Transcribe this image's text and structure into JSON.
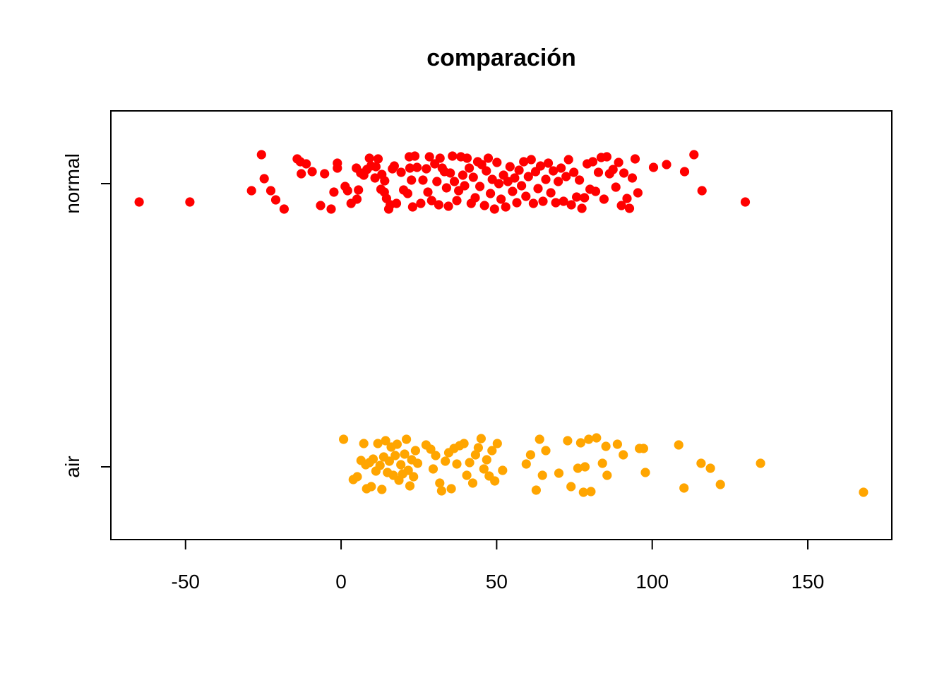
{
  "chart_data": {
    "type": "scatter",
    "title": "comparación",
    "xlabel": "",
    "ylabel": "",
    "xlim": [
      -74,
      177
    ],
    "x_ticks": [
      -50,
      0,
      50,
      100,
      150
    ],
    "x_tick_labels": [
      "-50",
      "0",
      "50",
      "100",
      "150"
    ],
    "categories": [
      "air",
      "normal"
    ],
    "grid": false,
    "legend": "none",
    "jitter": true,
    "series": [
      {
        "category": "normal",
        "color": "#ff0000",
        "points": [
          [
            -64.9,
            -0.26
          ],
          [
            -48.6,
            -0.26
          ],
          [
            -25.6,
            0.41
          ],
          [
            -24.7,
            0.07
          ],
          [
            -28.8,
            -0.1
          ],
          [
            -22.6,
            -0.1
          ],
          [
            -21.0,
            -0.23
          ],
          [
            -18.3,
            -0.36
          ],
          [
            -14.1,
            0.35
          ],
          [
            -13.1,
            0.31
          ],
          [
            -12.8,
            0.14
          ],
          [
            -11.2,
            0.28
          ],
          [
            -9.3,
            0.17
          ],
          [
            -6.6,
            -0.31
          ],
          [
            -5.3,
            0.14
          ],
          [
            -3.2,
            -0.36
          ],
          [
            -2.3,
            -0.12
          ],
          [
            -1.2,
            0.29
          ],
          [
            -1.2,
            0.22
          ],
          [
            1.3,
            -0.04
          ],
          [
            2.1,
            -0.1
          ],
          [
            3.2,
            -0.28
          ],
          [
            4.9,
            0.22
          ],
          [
            5.1,
            -0.22
          ],
          [
            5.6,
            -0.09
          ],
          [
            6.3,
            0.15
          ],
          [
            7.3,
            0.12
          ],
          [
            8.3,
            0.2
          ],
          [
            9.1,
            0.36
          ],
          [
            9.6,
            0.25
          ],
          [
            10.9,
            0.08
          ],
          [
            11.2,
            0.24
          ],
          [
            11.9,
            0.35
          ],
          [
            12.8,
            -0.08
          ],
          [
            13.1,
            0.13
          ],
          [
            13.9,
            -0.12
          ],
          [
            14.0,
            0.04
          ],
          [
            14.6,
            -0.21
          ],
          [
            15.3,
            -0.36
          ],
          [
            15.8,
            -0.3
          ],
          [
            16.5,
            0.21
          ],
          [
            17.1,
            0.25
          ],
          [
            17.8,
            -0.28
          ],
          [
            19.3,
            0.16
          ],
          [
            20.1,
            -0.09
          ],
          [
            21.4,
            -0.14
          ],
          [
            21.9,
            0.38
          ],
          [
            22.1,
            0.22
          ],
          [
            22.6,
            0.05
          ],
          [
            23.0,
            -0.33
          ],
          [
            23.7,
            0.39
          ],
          [
            24.4,
            0.23
          ],
          [
            25.6,
            -0.28
          ],
          [
            26.3,
            0.05
          ],
          [
            27.4,
            0.21
          ],
          [
            27.9,
            -0.12
          ],
          [
            28.4,
            0.38
          ],
          [
            29.1,
            -0.24
          ],
          [
            30.1,
            0.28
          ],
          [
            30.8,
            0.03
          ],
          [
            31.4,
            -0.3
          ],
          [
            31.8,
            0.36
          ],
          [
            32.5,
            0.22
          ],
          [
            33.2,
            0.17
          ],
          [
            33.9,
            -0.06
          ],
          [
            34.5,
            -0.32
          ],
          [
            35.1,
            0.15
          ],
          [
            35.8,
            0.39
          ],
          [
            36.4,
            0.03
          ],
          [
            37.2,
            -0.24
          ],
          [
            37.8,
            -0.1
          ],
          [
            38.5,
            0.38
          ],
          [
            39.1,
            0.12
          ],
          [
            39.7,
            -0.03
          ],
          [
            40.5,
            0.36
          ],
          [
            41.2,
            0.22
          ],
          [
            41.8,
            -0.28
          ],
          [
            42.5,
            0.09
          ],
          [
            43.1,
            -0.2
          ],
          [
            43.9,
            0.31
          ],
          [
            44.6,
            -0.04
          ],
          [
            45.2,
            0.27
          ],
          [
            46.1,
            -0.31
          ],
          [
            46.7,
            0.18
          ],
          [
            47.3,
            0.36
          ],
          [
            48.0,
            -0.14
          ],
          [
            48.6,
            0.06
          ],
          [
            49.3,
            -0.36
          ],
          [
            50.1,
            0.3
          ],
          [
            50.7,
            0.0
          ],
          [
            51.4,
            -0.22
          ],
          [
            52.2,
            0.12
          ],
          [
            52.9,
            -0.33
          ],
          [
            53.6,
            0.03
          ],
          [
            54.3,
            0.24
          ],
          [
            55.1,
            -0.11
          ],
          [
            55.8,
            0.08
          ],
          [
            56.5,
            -0.27
          ],
          [
            57.2,
            0.19
          ],
          [
            58.0,
            -0.03
          ],
          [
            58.7,
            0.31
          ],
          [
            59.4,
            -0.18
          ],
          [
            60.2,
            0.1
          ],
          [
            61.1,
            0.34
          ],
          [
            61.8,
            -0.28
          ],
          [
            62.5,
            0.17
          ],
          [
            63.3,
            -0.07
          ],
          [
            64.1,
            0.25
          ],
          [
            64.9,
            -0.25
          ],
          [
            65.8,
            0.06
          ],
          [
            66.6,
            0.29
          ],
          [
            67.4,
            -0.13
          ],
          [
            68.2,
            0.18
          ],
          [
            69.0,
            -0.27
          ],
          [
            69.8,
            0.03
          ],
          [
            70.7,
            0.22
          ],
          [
            71.5,
            -0.25
          ],
          [
            72.3,
            0.1
          ],
          [
            73.1,
            0.34
          ],
          [
            74.0,
            -0.3
          ],
          [
            74.8,
            0.16
          ],
          [
            75.7,
            -0.19
          ],
          [
            76.6,
            0.05
          ],
          [
            77.4,
            -0.35
          ],
          [
            78.2,
            -0.2
          ],
          [
            79.1,
            0.28
          ],
          [
            80.0,
            -0.08
          ],
          [
            80.9,
            0.31
          ],
          [
            81.8,
            -0.11
          ],
          [
            82.7,
            0.16
          ],
          [
            83.6,
            0.37
          ],
          [
            84.5,
            -0.22
          ],
          [
            85.4,
            0.38
          ],
          [
            86.3,
            0.14
          ],
          [
            87.4,
            0.2
          ],
          [
            88.3,
            -0.05
          ],
          [
            89.2,
            0.3
          ],
          [
            90.1,
            -0.31
          ],
          [
            90.9,
            0.15
          ],
          [
            91.9,
            -0.21
          ],
          [
            92.7,
            -0.35
          ],
          [
            93.6,
            0.08
          ],
          [
            94.5,
            0.35
          ],
          [
            95.4,
            -0.13
          ],
          [
            100.4,
            0.23
          ],
          [
            104.6,
            0.27
          ],
          [
            110.4,
            0.17
          ],
          [
            113.4,
            0.41
          ],
          [
            116.0,
            -0.1
          ],
          [
            129.9,
            -0.26
          ]
        ]
      },
      {
        "category": "air",
        "color": "#ffa500",
        "points": [
          [
            0.8,
            0.39
          ],
          [
            3.9,
            -0.18
          ],
          [
            5.2,
            -0.14
          ],
          [
            6.4,
            0.09
          ],
          [
            7.3,
            0.33
          ],
          [
            7.9,
            0.03
          ],
          [
            8.2,
            -0.31
          ],
          [
            9.1,
            0.06
          ],
          [
            9.7,
            -0.28
          ],
          [
            10.3,
            0.11
          ],
          [
            11.2,
            -0.06
          ],
          [
            11.8,
            0.33
          ],
          [
            12.5,
            0.02
          ],
          [
            13.1,
            -0.32
          ],
          [
            13.7,
            0.14
          ],
          [
            14.3,
            0.37
          ],
          [
            14.9,
            -0.08
          ],
          [
            15.5,
            0.08
          ],
          [
            16.1,
            0.28
          ],
          [
            16.8,
            -0.12
          ],
          [
            17.4,
            0.16
          ],
          [
            18.0,
            0.32
          ],
          [
            18.6,
            -0.19
          ],
          [
            19.2,
            0.03
          ],
          [
            19.8,
            -0.1
          ],
          [
            20.4,
            0.18
          ],
          [
            21.0,
            0.39
          ],
          [
            21.6,
            -0.05
          ],
          [
            22.1,
            -0.27
          ],
          [
            22.7,
            0.1
          ],
          [
            23.3,
            -0.14
          ],
          [
            23.9,
            0.23
          ],
          [
            24.6,
            0.05
          ],
          [
            27.3,
            0.31
          ],
          [
            28.8,
            0.25
          ],
          [
            29.6,
            -0.03
          ],
          [
            30.4,
            0.16
          ],
          [
            31.7,
            -0.23
          ],
          [
            32.3,
            -0.34
          ],
          [
            33.5,
            0.08
          ],
          [
            34.6,
            0.2
          ],
          [
            35.4,
            -0.31
          ],
          [
            36.3,
            0.26
          ],
          [
            37.2,
            0.04
          ],
          [
            38.1,
            0.3
          ],
          [
            39.5,
            0.33
          ],
          [
            40.4,
            -0.12
          ],
          [
            41.3,
            0.06
          ],
          [
            42.3,
            -0.23
          ],
          [
            43.2,
            0.17
          ],
          [
            44.1,
            0.27
          ],
          [
            45.0,
            0.4
          ],
          [
            45.9,
            -0.03
          ],
          [
            46.8,
            0.1
          ],
          [
            47.6,
            -0.13
          ],
          [
            48.5,
            0.23
          ],
          [
            49.4,
            -0.2
          ],
          [
            50.2,
            0.33
          ],
          [
            51.9,
            -0.05
          ],
          [
            59.5,
            0.04
          ],
          [
            60.9,
            0.17
          ],
          [
            62.7,
            -0.33
          ],
          [
            63.8,
            0.39
          ],
          [
            64.7,
            -0.12
          ],
          [
            65.8,
            0.23
          ],
          [
            70.0,
            -0.09
          ],
          [
            72.8,
            0.37
          ],
          [
            73.9,
            -0.28
          ],
          [
            76.1,
            -0.02
          ],
          [
            77.0,
            0.34
          ],
          [
            77.9,
            -0.36
          ],
          [
            78.4,
            0.0
          ],
          [
            79.6,
            0.39
          ],
          [
            80.3,
            -0.35
          ],
          [
            82.1,
            0.41
          ],
          [
            84.0,
            0.05
          ],
          [
            85.1,
            0.29
          ],
          [
            85.5,
            -0.12
          ],
          [
            88.8,
            0.32
          ],
          [
            90.7,
            0.17
          ],
          [
            95.9,
            0.26
          ],
          [
            97.2,
            0.26
          ],
          [
            97.8,
            -0.08
          ],
          [
            108.5,
            0.31
          ],
          [
            110.2,
            -0.3
          ],
          [
            115.7,
            0.05
          ],
          [
            118.7,
            -0.02
          ],
          [
            121.9,
            -0.25
          ],
          [
            134.8,
            0.05
          ],
          [
            167.9,
            -0.36
          ]
        ]
      }
    ]
  }
}
